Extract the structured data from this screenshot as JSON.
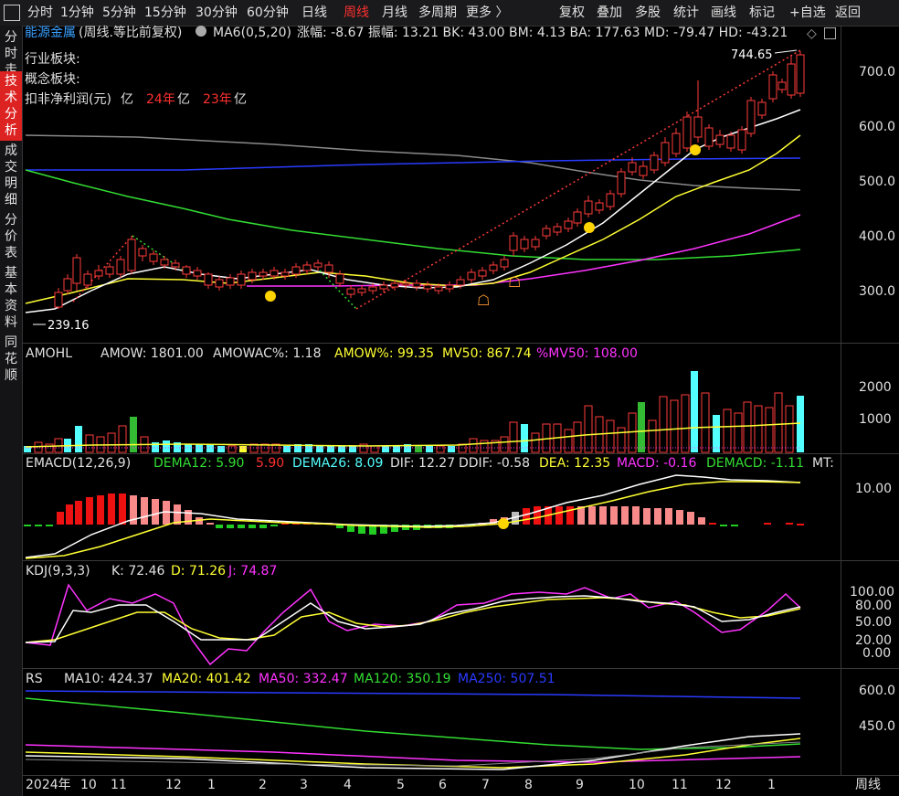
{
  "toolbar": {
    "items": [
      "分时",
      "1分钟",
      "5分钟",
      "15分钟",
      "30分钟",
      "60分钟",
      "日线",
      "周线",
      "月线",
      "多周期",
      "更多 〉",
      "复权",
      "叠加",
      "多股",
      "统计",
      "画线",
      "标记",
      "+自选",
      "返回"
    ],
    "active": "周线"
  },
  "sidebar": {
    "items": [
      "分时走势",
      "技术分析",
      "成交明细",
      "分价表",
      "基本资料",
      "同花顺"
    ],
    "active": "技术分析"
  },
  "main": {
    "stock_name": "能源金属",
    "period_note": "(周线.等比前复权)",
    "ma_label": "MA6(0,5,20)",
    "stats": "涨幅: -8.67  振幅: 13.21  BK: 43.00  BM: 4.13  BA: 177.63  MD: -79.47  HD: -43.21",
    "industry_label": "行业板块:",
    "concept_label": "概念板块:",
    "profit_label": "扣非净利润(元)",
    "profit_vals": [
      "亿",
      "24年",
      "亿",
      "23年",
      "亿"
    ],
    "high_label": "744.65",
    "low_label": "239.16",
    "price_ticks": [
      "700.0",
      "600.0",
      "500.0",
      "400.0",
      "300.0"
    ]
  },
  "amohl": {
    "title": "AMOHL",
    "amow": "AMOW: 1801.00",
    "amowac": "AMOWAC%: 1.18",
    "amow_pct": "AMOW%: 99.35",
    "mv50": "MV50: 867.74",
    "pct_mv50": "%MV50: 108.00",
    "ticks": [
      "2000",
      "1000"
    ]
  },
  "emacd": {
    "title": "EMACD(12,26,9)",
    "dema12": "DEMA12: 5.90",
    "dema12_val": "5.90",
    "dema26": "DEMA26: 8.09",
    "dif": "DIF: 12.27",
    "ddif": "DDIF: -0.58",
    "dea": "DEA: 12.35",
    "macd": "MACD: -0.16",
    "demacd": "DEMACD: -1.11",
    "mt": "MT:",
    "ticks": [
      "10.00"
    ]
  },
  "kdj": {
    "title": "KDJ(9,3,3)",
    "k": "K: 72.46",
    "d": "D: 71.26",
    "j": "J: 74.87",
    "ticks": [
      "100.00",
      "80.00",
      "50.00",
      "20.00",
      "0.00"
    ]
  },
  "rs": {
    "title": "RS",
    "ma10": "MA10: 424.37",
    "ma20": "MA20: 401.42",
    "ma50": "MA50: 332.47",
    "ma120": "MA120: 350.19",
    "ma250": "MA250: 507.51",
    "ticks": [
      "600.0",
      "450.0"
    ]
  },
  "xaxis": {
    "labels": [
      "2024年",
      "10",
      "11",
      "12",
      "1",
      "2",
      "3",
      "4",
      "5",
      "6",
      "7",
      "8",
      "9",
      "10",
      "11",
      "12",
      "1"
    ],
    "period_label": "周线"
  },
  "colors": {
    "up": "#ff3b3b",
    "down": "#54ffff",
    "white": "#ffffff",
    "yellow": "#ffff33",
    "magenta": "#ff33ff",
    "green": "#33dd33",
    "blue": "#2a3bff",
    "gray": "#888888"
  }
}
